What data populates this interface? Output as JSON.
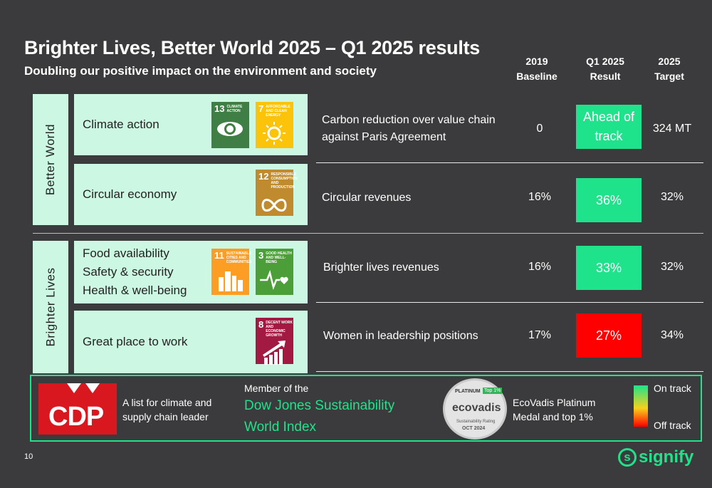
{
  "header": {
    "title": "Brighter Lives, Better World 2025 – Q1 2025 results",
    "subtitle": "Doubling our positive impact on the environment and society"
  },
  "columns": {
    "baseline": [
      "2019",
      "Baseline"
    ],
    "result": [
      "Q1 2025",
      "Result"
    ],
    "target": [
      "2025",
      "Target"
    ]
  },
  "groups": {
    "better_world": "Better World",
    "brighter_lives": "Brighter Lives"
  },
  "categories": {
    "climate": "Climate action",
    "circular": "Circular economy",
    "food": "Food availability",
    "safety": "Safety & security",
    "health": "Health & well-being",
    "work": "Great place to work"
  },
  "sdg": {
    "s13": {
      "num": "13",
      "label": "CLIMATE ACTION",
      "color": "#3f7e44"
    },
    "s7": {
      "num": "7",
      "label": "AFFORDABLE AND CLEAN ENERGY",
      "color": "#fcc30b"
    },
    "s12": {
      "num": "12",
      "label": "RESPONSIBLE CONSUMPTION AND PRODUCTION",
      "color": "#bf8b2e"
    },
    "s11": {
      "num": "11",
      "label": "SUSTAINABLE CITIES AND COMMUNITIES",
      "color": "#fd9d24"
    },
    "s3": {
      "num": "3",
      "label": "GOOD HEALTH AND WELL-BEING",
      "color": "#4c9f38"
    },
    "s8": {
      "num": "8",
      "label": "DECENT WORK AND ECONOMIC GROWTH",
      "color": "#a21942"
    }
  },
  "rows": [
    {
      "metric": [
        "Carbon reduction over value chain",
        "against Paris Agreement"
      ],
      "baseline": "0",
      "result": [
        "Ahead of",
        "track"
      ],
      "target": "324 MT",
      "status_color": "#1ee38a"
    },
    {
      "metric": [
        "Circular revenues"
      ],
      "baseline": "16%",
      "result": [
        "36%"
      ],
      "target": "32%",
      "status_color": "#1ee38a"
    },
    {
      "metric": [
        "Brighter lives revenues"
      ],
      "baseline": "16%",
      "result": [
        "33%"
      ],
      "target": "32%",
      "status_color": "#1ee38a"
    },
    {
      "metric": [
        "Women in leadership positions"
      ],
      "baseline": "17%",
      "result": [
        "27%"
      ],
      "target": "34%",
      "status_color": "#ff0000"
    }
  ],
  "footer": {
    "cdp_logo": "CDP",
    "cdp_text": [
      "A list for climate and",
      "supply chain leader"
    ],
    "djsi_intro": "Member of the",
    "djsi_name": [
      "Dow Jones Sustainability",
      "World Index"
    ],
    "ecovadis_badge": {
      "platinum": "PLATINUM",
      "top": "Top 1%",
      "brand": "ecovadis",
      "rating": "Sustainability Rating",
      "date": "OCT 2024"
    },
    "ecovadis_text": [
      "EcoVadis Platinum",
      "Medal and top 1%"
    ],
    "legend_on": "On track",
    "legend_off": "Off track"
  },
  "page_number": "10",
  "brand": "signify",
  "colors": {
    "accent": "#1ee38a",
    "off_track": "#ff0000",
    "panel": "#ccf7e2",
    "background": "#3b3b3d"
  }
}
